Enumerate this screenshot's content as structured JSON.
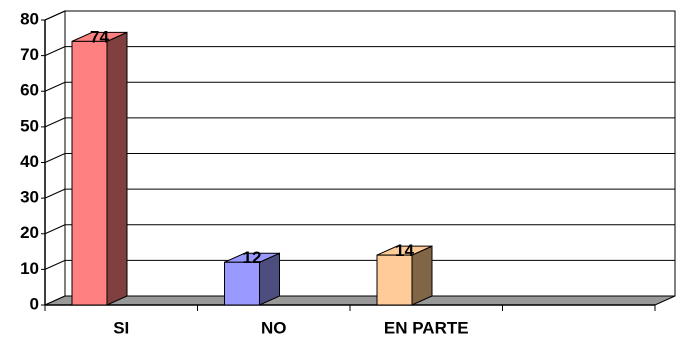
{
  "chart_data": {
    "type": "bar3d",
    "categories": [
      "SI",
      "NO",
      "EN PARTE",
      null
    ],
    "values": [
      74,
      12,
      14,
      null
    ],
    "colors": [
      "#ff8080",
      "#9999ff",
      "#ffcc99",
      "#cccccc"
    ],
    "side_colors": [
      "#804040",
      "#4d4d80",
      "#806646",
      "#808080"
    ],
    "ylim": [
      0,
      80
    ],
    "yticks": [
      0,
      10,
      20,
      30,
      40,
      50,
      60,
      70,
      80
    ],
    "grid": true
  }
}
